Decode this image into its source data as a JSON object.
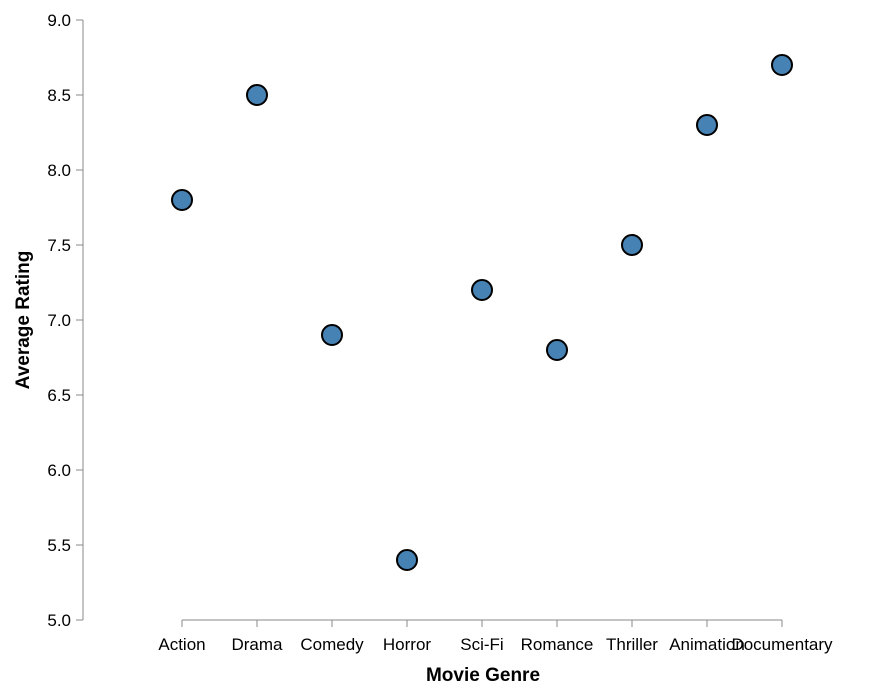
{
  "chart_data": {
    "type": "scatter",
    "title": "",
    "xlabel": "Movie Genre",
    "ylabel": "Average Rating",
    "categories": [
      "Action",
      "Drama",
      "Comedy",
      "Horror",
      "Sci-Fi",
      "Romance",
      "Thriller",
      "Animation",
      "Documentary"
    ],
    "values": [
      7.8,
      8.5,
      6.9,
      5.4,
      7.2,
      6.8,
      7.5,
      8.3,
      8.7
    ],
    "ylim": [
      5.0,
      9.0
    ],
    "yticks": [
      "5.0",
      "5.5",
      "6.0",
      "6.5",
      "7.0",
      "7.5",
      "8.0",
      "8.5",
      "9.0"
    ],
    "grid": false,
    "legend": "none",
    "point_color": "#4682b4",
    "point_stroke": "#000000"
  }
}
